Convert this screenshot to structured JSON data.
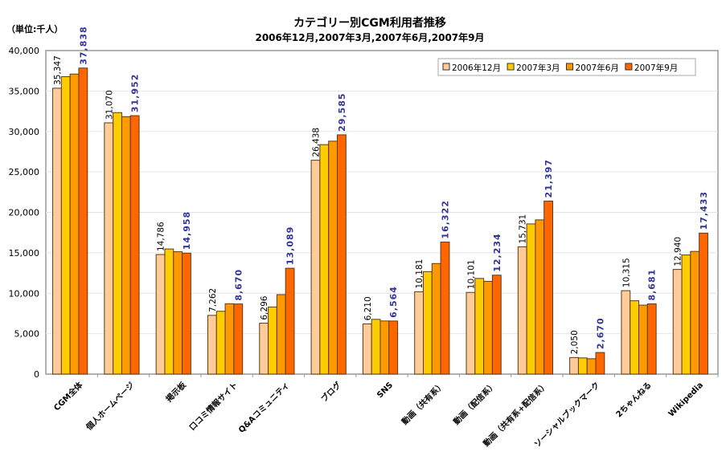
{
  "chart_data": {
    "type": "bar",
    "title": "カテゴリー別CGM利用者推移",
    "subtitle": "2006年12月,2007年3月,2007年6月,2007年9月",
    "unit_label": "（単位:千人）",
    "xlabel": "",
    "ylabel": "",
    "ylim": [
      0,
      40000
    ],
    "yticks": [
      "0",
      "5,000",
      "10,000",
      "15,000",
      "20,000",
      "25,000",
      "30,000",
      "35,000",
      "40,000"
    ],
    "grid": true,
    "legend_position": "top-right",
    "categories": [
      "CGM全体",
      "個人ホームページ",
      "掲示板",
      "口コミ情報サイト",
      "Q&Aコミュニティ",
      "ブログ",
      "SNS",
      "動画（共有系）",
      "動画（配信系）",
      "動画（共有系+配信系）",
      "ソーシャルブックマーク",
      "2ちゃんねる",
      "Wikipedia"
    ],
    "series": [
      {
        "name": "2006年12月",
        "color": "#FFCC99",
        "values": [
          35347,
          31070,
          14786,
          7262,
          6296,
          26438,
          6210,
          10181,
          10101,
          15731,
          2050,
          10315,
          12940
        ],
        "labels": [
          "35,347",
          "31,070",
          "14,786",
          "7,262",
          "6,296",
          "26,438",
          "6,210",
          "10,181",
          "10,101",
          "15,731",
          "2,050",
          "10,315",
          "12,940"
        ]
      },
      {
        "name": "2007年3月",
        "color": "#FFCC00",
        "values": [
          36770,
          32330,
          15470,
          7770,
          8300,
          28370,
          6770,
          12670,
          11830,
          18570,
          2000,
          9070,
          14730
        ]
      },
      {
        "name": "2007年6月",
        "color": "#FF9900",
        "values": [
          37100,
          31830,
          15130,
          8700,
          9830,
          28800,
          6570,
          13670,
          11470,
          19070,
          1900,
          8530,
          15170
        ]
      },
      {
        "name": "2007年9月",
        "color": "#FF6600",
        "values": [
          37838,
          31952,
          14958,
          8670,
          13089,
          29585,
          6564,
          16322,
          12234,
          21397,
          2670,
          8681,
          17433
        ],
        "labels": [
          "37,838",
          "31,952",
          "14,958",
          "8,670",
          "13,089",
          "29,585",
          "6,564",
          "16,322",
          "12,234",
          "21,397",
          "2,670",
          "8,681",
          "17,433"
        ]
      }
    ]
  }
}
